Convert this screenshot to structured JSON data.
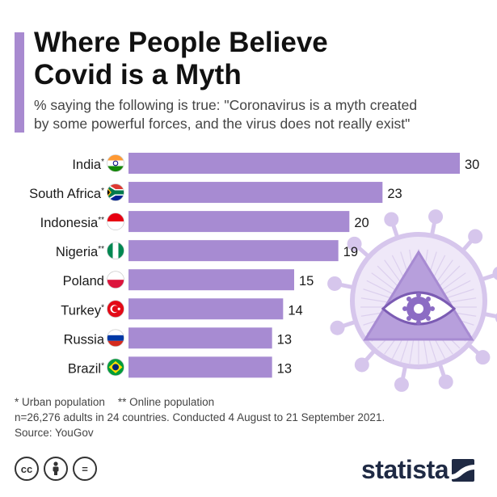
{
  "header": {
    "title_line1": "Where People Believe",
    "title_line2": "Covid is a Myth",
    "subtitle_line1": "% saying the following is true: \"Coronavirus is a myth created",
    "subtitle_line2": "by some powerful forces, and the virus does not really exist\""
  },
  "chart_data": {
    "type": "bar",
    "orientation": "horizontal",
    "title": "Where People Believe Covid is a Myth",
    "subtitle": "% saying the following is true: \"Coronavirus is a myth created by some powerful forces, and the virus does not really exist\"",
    "xlabel": "",
    "ylabel": "",
    "xlim": [
      0,
      30
    ],
    "grid": false,
    "legend": "none",
    "categories": [
      "India",
      "South Africa",
      "Indonesia",
      "Nigeria",
      "Poland",
      "Turkey",
      "Russia",
      "Brazil"
    ],
    "markers": [
      "*",
      "*",
      "**",
      "**",
      "",
      "*",
      "",
      "*"
    ],
    "values": [
      30,
      23,
      20,
      19,
      15,
      14,
      13,
      13
    ],
    "bar_color": "#a78bd2"
  },
  "flags": [
    "india-flag-icon",
    "south-africa-flag-icon",
    "indonesia-flag-icon",
    "nigeria-flag-icon",
    "poland-flag-icon",
    "turkey-flag-icon",
    "russia-flag-icon",
    "brazil-flag-icon"
  ],
  "decoration": "virus-eye-illustration",
  "footnotes": {
    "urban": "* Urban population",
    "online": "** Online population",
    "sample": "n=26,276 adults in 24 countries. Conducted 4 August to 21 September 2021.",
    "source": "Source: YouGov"
  },
  "license": {
    "cc": "cc",
    "equal": "="
  },
  "brand": {
    "name": "statista",
    "color": "#1f2a44"
  },
  "colors": {
    "accent": "#a88ad0",
    "bar": "#a78bd2",
    "illustration": "#d6c6ec"
  }
}
